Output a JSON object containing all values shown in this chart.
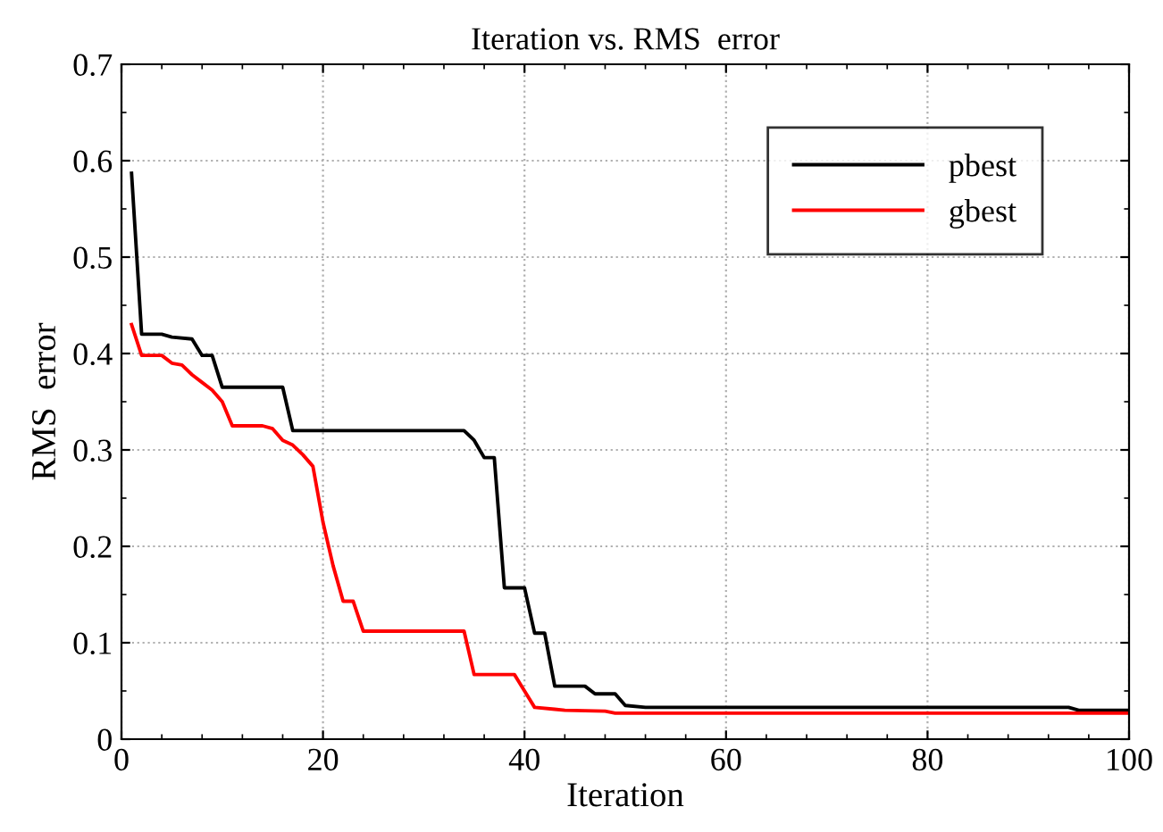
{
  "chart_data": {
    "type": "line",
    "title": "Iteration vs. RMS  error",
    "xlabel": "Iteration",
    "ylabel": "RMS  error",
    "xlim": [
      0,
      100
    ],
    "xticks": [
      0,
      20,
      40,
      60,
      80,
      100
    ],
    "ylim": [
      0,
      0.7
    ],
    "yticks": [
      0,
      0.1,
      0.2,
      0.3,
      0.4,
      0.5,
      0.6,
      0.7
    ],
    "grid": true,
    "legend": "top right",
    "marker": "none",
    "line_style": "solid",
    "series": [
      {
        "name": "pbest",
        "color": "#000000",
        "x": [
          1,
          2,
          4,
          5,
          7,
          8,
          9,
          10,
          16,
          17,
          34,
          35,
          36,
          37,
          38,
          40,
          41,
          42,
          43,
          46,
          47,
          49,
          50,
          52,
          94,
          95,
          100
        ],
        "values": [
          0.587,
          0.42,
          0.42,
          0.417,
          0.415,
          0.398,
          0.398,
          0.365,
          0.365,
          0.32,
          0.32,
          0.31,
          0.292,
          0.292,
          0.157,
          0.157,
          0.11,
          0.11,
          0.055,
          0.055,
          0.047,
          0.047,
          0.035,
          0.033,
          0.033,
          0.03,
          0.03
        ]
      },
      {
        "name": "gbest",
        "color": "#ff0000",
        "x": [
          1,
          2,
          4,
          5,
          6,
          7,
          8,
          9,
          10,
          11,
          14,
          15,
          16,
          17,
          18,
          19,
          20,
          21,
          22,
          23,
          24,
          34,
          35,
          39,
          40,
          41,
          43,
          44,
          48,
          49,
          100
        ],
        "values": [
          0.43,
          0.398,
          0.398,
          0.39,
          0.388,
          0.378,
          0.37,
          0.362,
          0.35,
          0.325,
          0.325,
          0.322,
          0.31,
          0.305,
          0.295,
          0.283,
          0.225,
          0.18,
          0.143,
          0.143,
          0.112,
          0.112,
          0.067,
          0.067,
          0.05,
          0.033,
          0.031,
          0.03,
          0.029,
          0.027,
          0.027
        ]
      }
    ]
  }
}
